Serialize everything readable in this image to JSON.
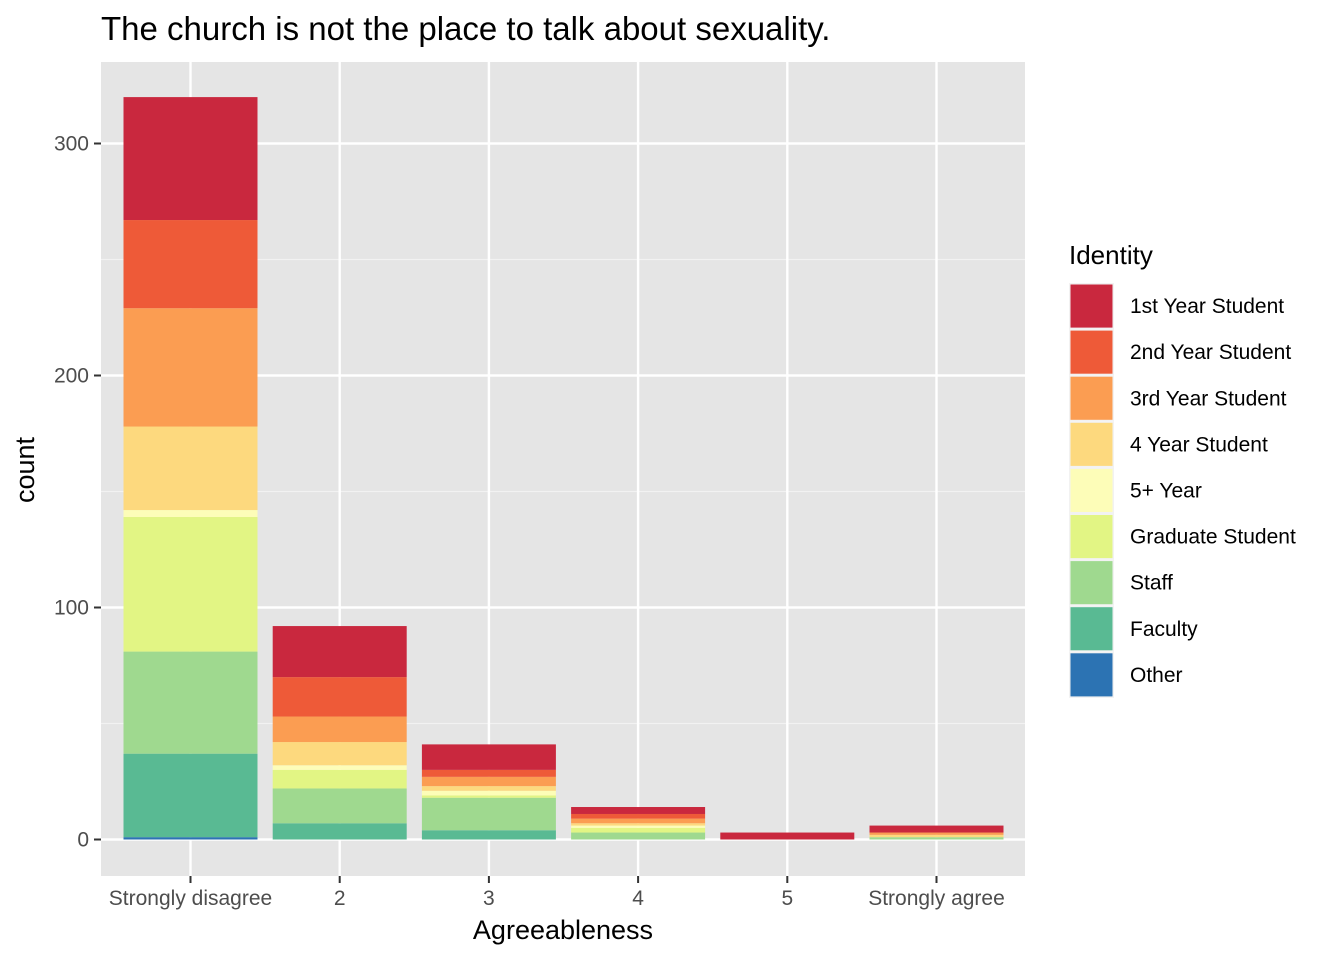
{
  "chart_data": {
    "type": "bar",
    "stacked": true,
    "title": "The church is not the place to talk about sexuality.",
    "xlabel": "Agreeableness",
    "ylabel": "count",
    "categories": [
      "Strongly disagree",
      "2",
      "3",
      "4",
      "5",
      "Strongly agree"
    ],
    "ylim": [
      -15,
      330
    ],
    "yticks": [
      0,
      100,
      200,
      300
    ],
    "grid": true,
    "legend": {
      "title": "Identity",
      "position": "right"
    },
    "series": [
      {
        "name": "1st Year Student",
        "color": "#c9283e",
        "values": [
          53,
          22,
          11,
          3,
          3,
          3
        ]
      },
      {
        "name": "2nd Year Student",
        "color": "#ee5a38",
        "values": [
          38,
          17,
          3,
          2,
          0,
          0
        ]
      },
      {
        "name": "3rd Year Student",
        "color": "#fb9d52",
        "values": [
          51,
          11,
          4,
          2,
          0,
          1
        ]
      },
      {
        "name": "4 Year Student",
        "color": "#fdd97e",
        "values": [
          36,
          10,
          2,
          1,
          0,
          1
        ]
      },
      {
        "name": "5+ Year",
        "color": "#fdfdb8",
        "values": [
          3,
          2,
          2,
          1,
          0,
          0
        ]
      },
      {
        "name": "Graduate Student",
        "color": "#e2f584",
        "values": [
          58,
          8,
          1,
          2,
          0,
          0
        ]
      },
      {
        "name": "Staff",
        "color": "#9fd98f",
        "values": [
          44,
          15,
          14,
          3,
          0,
          1
        ]
      },
      {
        "name": "Faculty",
        "color": "#59ba93",
        "values": [
          36,
          7,
          4,
          0,
          0,
          0
        ]
      },
      {
        "name": "Other",
        "color": "#2c73b3",
        "values": [
          1,
          0,
          0,
          0,
          0,
          0
        ]
      }
    ]
  }
}
